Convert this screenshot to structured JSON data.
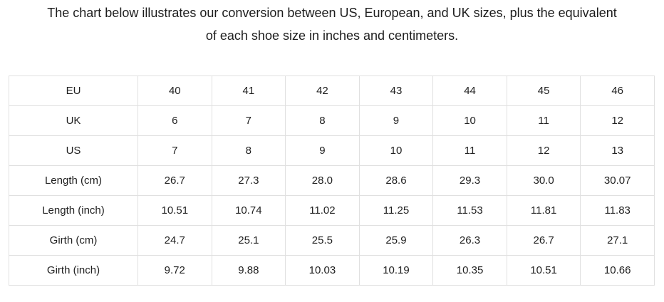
{
  "intro": {
    "lines": [
      "The chart below illustrates our conversion between US, European, and UK sizes, plus the equivalent",
      "of each shoe size in inches and centimeters."
    ]
  },
  "table": {
    "rows": [
      {
        "label": "EU",
        "values": [
          "40",
          "41",
          "42",
          "43",
          "44",
          "45",
          "46"
        ]
      },
      {
        "label": "UK",
        "values": [
          "6",
          "7",
          "8",
          "9",
          "10",
          "11",
          "12"
        ]
      },
      {
        "label": "US",
        "values": [
          "7",
          "8",
          "9",
          "10",
          "11",
          "12",
          "13"
        ]
      },
      {
        "label": "Length (cm)",
        "values": [
          "26.7",
          "27.3",
          "28.0",
          "28.6",
          "29.3",
          "30.0",
          "30.07"
        ]
      },
      {
        "label": "Length (inch)",
        "values": [
          "10.51",
          "10.74",
          "11.02",
          "11.25",
          "11.53",
          "11.81",
          "11.83"
        ]
      },
      {
        "label": "Girth (cm)",
        "values": [
          "24.7",
          "25.1",
          "25.5",
          "25.9",
          "26.3",
          "26.7",
          "27.1"
        ]
      },
      {
        "label": "Girth (inch)",
        "values": [
          "9.72",
          "9.88",
          "10.03",
          "10.19",
          "10.35",
          "10.51",
          "10.66"
        ]
      }
    ]
  },
  "colors": {
    "text": "#1e1e1e",
    "table_border": "#e0e0e0",
    "background": "#ffffff"
  }
}
